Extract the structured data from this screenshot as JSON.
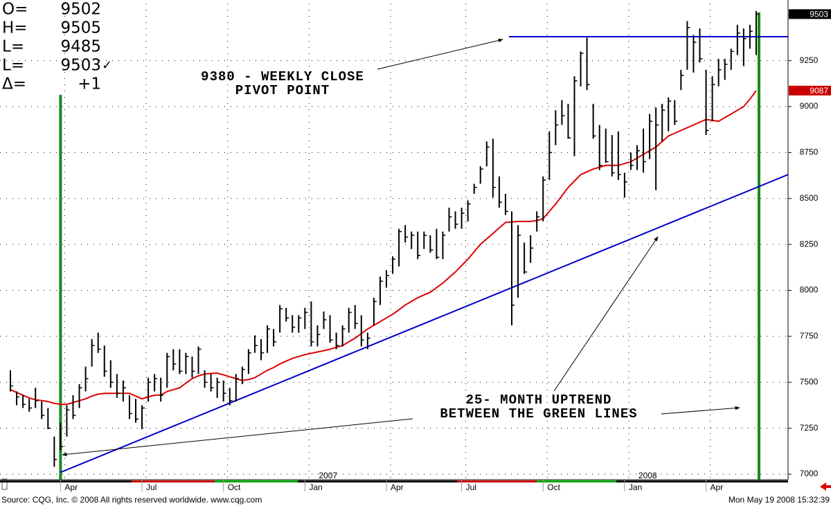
{
  "chart_data": {
    "type": "hlc",
    "quote": [
      {
        "label": "O=",
        "value": 9502
      },
      {
        "label": "H=",
        "value": 9505
      },
      {
        "label": "L=",
        "value": 9485
      },
      {
        "label": "L=",
        "value": 9503,
        "mark": "✓"
      },
      {
        "label": "Δ=",
        "value": 1,
        "value_label": "+1"
      }
    ],
    "annotations": [
      {
        "lines": [
          "9380 - WEEKLY CLOSE",
          "PIVOT POINT"
        ]
      },
      {
        "lines": [
          "25- MONTH UPTREND",
          "BETWEEN THE GREEN LINES"
        ]
      }
    ],
    "source": "Source: CQG, Inc. © 2008 All rights reserved worldwide. www.cqg.com",
    "timestamp": "Mon May 19 2008 15:32:39",
    "years": [
      "2007",
      "2008"
    ],
    "categories": [
      null,
      null,
      null,
      null,
      null,
      null,
      null,
      null,
      "Apr",
      null,
      null,
      null,
      null,
      null,
      null,
      null,
      null,
      null,
      null,
      null,
      null,
      "Jul",
      null,
      null,
      null,
      null,
      null,
      null,
      null,
      null,
      null,
      null,
      null,
      null,
      "Oct",
      null,
      null,
      null,
      null,
      null,
      null,
      null,
      null,
      null,
      null,
      null,
      null,
      "Jan",
      null,
      null,
      null,
      null,
      null,
      null,
      null,
      null,
      null,
      null,
      null,
      null,
      "Apr",
      null,
      null,
      null,
      null,
      null,
      null,
      null,
      null,
      null,
      null,
      null,
      "Jul",
      null,
      null,
      null,
      null,
      null,
      null,
      null,
      null,
      null,
      null,
      null,
      null,
      "Oct",
      null,
      null,
      null,
      null,
      null,
      null,
      null,
      null,
      null,
      null,
      null,
      null,
      "Jan",
      null,
      null,
      null,
      null,
      null,
      null,
      null,
      null,
      null,
      null,
      null,
      null,
      "Apr",
      null,
      null,
      null,
      null,
      null,
      null,
      null,
      null
    ],
    "bar_color": "#000000",
    "high": [
      7565,
      7450,
      7430,
      7410,
      7470,
      7395,
      7360,
      7205,
      7280,
      7375,
      7430,
      7490,
      7585,
      7735,
      7770,
      7700,
      7620,
      7545,
      7510,
      7430,
      7410,
      7375,
      7525,
      7545,
      7525,
      7660,
      7680,
      7680,
      7660,
      7640,
      7695,
      7565,
      7545,
      7525,
      7510,
      7470,
      7545,
      7585,
      7680,
      7755,
      7735,
      7810,
      7790,
      7920,
      7905,
      7865,
      7865,
      7905,
      7940,
      7810,
      7885,
      7865,
      7770,
      7810,
      7905,
      7920,
      7865,
      7770,
      7960,
      8075,
      8110,
      8185,
      8335,
      8355,
      8320,
      8320,
      8320,
      8300,
      8335,
      8320,
      8450,
      8430,
      8450,
      8490,
      8580,
      8675,
      8810,
      8825,
      8620,
      8525,
      8430,
      8355,
      8260,
      8300,
      8430,
      8620,
      8865,
      8980,
      9035,
      9015,
      9165,
      9300,
      9375,
      9015,
      8900,
      8880,
      8845,
      8865,
      8640,
      8750,
      8790,
      8880,
      8960,
      8995,
      9015,
      9050,
      9035,
      9200,
      9465,
      9390,
      9425,
      9200,
      9165,
      9260,
      9260,
      9315,
      9445,
      9425,
      9445,
      9520
    ],
    "low": [
      7450,
      7375,
      7360,
      7340,
      7360,
      7300,
      7245,
      7040,
      7130,
      7205,
      7300,
      7360,
      7450,
      7585,
      7660,
      7530,
      7470,
      7415,
      7395,
      7300,
      7280,
      7245,
      7395,
      7450,
      7395,
      7470,
      7565,
      7545,
      7545,
      7525,
      7545,
      7470,
      7450,
      7415,
      7395,
      7375,
      7395,
      7490,
      7545,
      7660,
      7620,
      7660,
      7695,
      7770,
      7830,
      7770,
      7770,
      7790,
      7695,
      7695,
      7790,
      7715,
      7680,
      7695,
      7770,
      7790,
      7695,
      7680,
      7810,
      7920,
      8015,
      8090,
      8130,
      8260,
      8225,
      8170,
      8225,
      8205,
      8170,
      8170,
      8320,
      8335,
      8335,
      8375,
      8525,
      8580,
      8675,
      8505,
      8450,
      8410,
      7810,
      7960,
      8090,
      8150,
      8320,
      8375,
      8600,
      8790,
      8900,
      8825,
      8730,
      9110,
      9090,
      8825,
      8655,
      8695,
      8620,
      8600,
      8505,
      8655,
      8655,
      8640,
      8715,
      8545,
      8810,
      8865,
      8900,
      9090,
      9200,
      9185,
      9240,
      8845,
      8920,
      9110,
      9145,
      9200,
      9280,
      9220,
      9315,
      9280
    ],
    "close": [
      7480,
      7420,
      7380,
      7360,
      7400,
      7320,
      7250,
      7080,
      7150,
      7350,
      7320,
      7470,
      7520,
      7700,
      7680,
      7560,
      7500,
      7440,
      7470,
      7330,
      7300,
      7360,
      7500,
      7520,
      7430,
      7640,
      7600,
      7560,
      7640,
      7560,
      7680,
      7500,
      7470,
      7500,
      7440,
      7400,
      7520,
      7570,
      7660,
      7700,
      7660,
      7790,
      7720,
      7900,
      7850,
      7800,
      7850,
      7880,
      7720,
      7760,
      7840,
      7730,
      7700,
      7790,
      7880,
      7820,
      7730,
      7740,
      7940,
      8050,
      8080,
      8170,
      8320,
      8290,
      8300,
      8190,
      8300,
      8220,
      8180,
      8300,
      8400,
      8360,
      8420,
      8470,
      8560,
      8660,
      8780,
      8560,
      8480,
      8430,
      7920,
      8300,
      8100,
      8230,
      8400,
      8600,
      8750,
      8900,
      8950,
      8830,
      9140,
      9290,
      9120,
      8840,
      8680,
      8700,
      8640,
      8630,
      8590,
      8680,
      8760,
      8700,
      8920,
      8900,
      8980,
      9030,
      8920,
      9170,
      9430,
      9350,
      9260,
      8870,
      9120,
      9200,
      9230,
      9300,
      9400,
      9370,
      9410,
      9503
    ],
    "moving_average": {
      "color": "#dd0000",
      "values": [
        7460,
        7445,
        7430,
        7415,
        7405,
        7400,
        7395,
        7385,
        7380,
        7380,
        7390,
        7400,
        7410,
        7425,
        7435,
        7440,
        7440,
        7440,
        7440,
        7440,
        7425,
        7410,
        7420,
        7430,
        7430,
        7450,
        7460,
        7470,
        7495,
        7520,
        7535,
        7545,
        7548,
        7550,
        7540,
        7530,
        7520,
        7510,
        7515,
        7525,
        7545,
        7565,
        7580,
        7600,
        7615,
        7630,
        7640,
        7650,
        7658,
        7665,
        7672,
        7680,
        7690,
        7700,
        7720,
        7740,
        7765,
        7790,
        7810,
        7830,
        7850,
        7870,
        7895,
        7920,
        7940,
        7960,
        7975,
        7990,
        8015,
        8040,
        8070,
        8100,
        8135,
        8170,
        8210,
        8250,
        8280,
        8310,
        8340,
        8370,
        8372,
        8375,
        8375,
        8375,
        8380,
        8390,
        8430,
        8470,
        8515,
        8560,
        8595,
        8630,
        8645,
        8660,
        8670,
        8680,
        8680,
        8680,
        8690,
        8700,
        8720,
        8740,
        8760,
        8780,
        8810,
        8840,
        8855,
        8870,
        8885,
        8900,
        8915,
        8930,
        8925,
        8920,
        8940,
        8960,
        8980,
        9000,
        9040,
        9087
      ]
    },
    "trendline": {
      "color": "#0000cc",
      "values": [
        7010,
        8630
      ]
    },
    "pivot_line": {
      "color": "#0000cc",
      "value": 9380
    },
    "price_tags": [
      {
        "value": 9503,
        "color": "#000000"
      },
      {
        "value": 9087,
        "color": "#cc0000"
      }
    ],
    "ylim": [
      6970,
      9561
    ],
    "yticks": [
      7000,
      7250,
      7500,
      7750,
      8000,
      8250,
      8500,
      8750,
      9000,
      9250
    ],
    "grid": true
  }
}
